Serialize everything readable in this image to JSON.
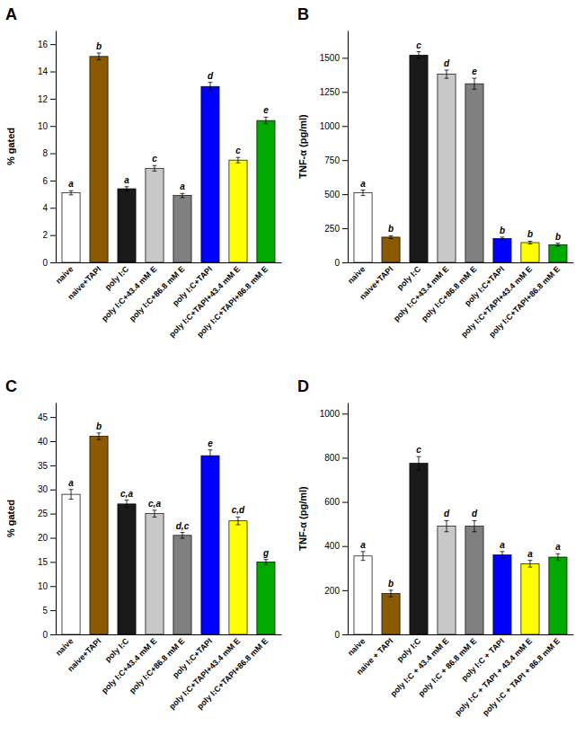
{
  "chart_data": [
    {
      "type": "bar",
      "title": "A",
      "ylabel": "% gated",
      "categories": [
        "naive",
        "naive+TAPI",
        "poly I:C",
        "poly I:C+43.4 mM E",
        "poly I:C+86.8 mM E",
        "poly I:C+TAPI",
        "poly I:C+TAPI+43.4 mM E",
        "poly I:C+TAPI+86.8 mM E"
      ],
      "values": [
        5.1,
        15.1,
        5.4,
        6.9,
        4.9,
        12.9,
        7.5,
        10.4
      ],
      "errors": [
        0.15,
        0.25,
        0.15,
        0.2,
        0.15,
        0.3,
        0.2,
        0.25
      ],
      "annotations": [
        "a",
        "b",
        "a",
        "c",
        "a",
        "d",
        "c",
        "e"
      ],
      "colors": [
        "#ffffff",
        "#8B5A00",
        "#1a1a1a",
        "#c8c8c8",
        "#808080",
        "#0000ff",
        "#ffff00",
        "#00aa00"
      ],
      "ylim": [
        0,
        17
      ],
      "yticks": [
        0,
        2,
        4,
        6,
        8,
        10,
        12,
        14,
        16
      ],
      "grid": false
    },
    {
      "type": "bar",
      "title": "B",
      "ylabel": "TNF-α (pg/ml)",
      "categories": [
        "naive",
        "naive+TAPI",
        "poly I:C",
        "poly I:C+43.4 mM E",
        "poly I:C+86.8 mM E",
        "poly I:C+TAPI",
        "poly I:C+TAPI+43.4 mM E",
        "poly I:C+TAPI+86.8 mM E"
      ],
      "values": [
        510,
        185,
        1520,
        1380,
        1310,
        175,
        145,
        130
      ],
      "errors": [
        20,
        10,
        25,
        30,
        40,
        10,
        10,
        10
      ],
      "annotations": [
        "a",
        "b",
        "c",
        "d",
        "e",
        "b",
        "b",
        "b"
      ],
      "colors": [
        "#ffffff",
        "#8B5A00",
        "#1a1a1a",
        "#c8c8c8",
        "#808080",
        "#0000ff",
        "#ffff00",
        "#00aa00"
      ],
      "ylim": [
        0,
        1700
      ],
      "yticks": [
        0,
        250,
        500,
        750,
        1000,
        1250,
        1500
      ],
      "grid": false
    },
    {
      "type": "bar",
      "title": "C",
      "ylabel": "% gated",
      "categories": [
        "naive",
        "naive+TAPI",
        "poly I:C",
        "poly I:C+43.4 mM E",
        "poly I:C+86.8 mM E",
        "poly I:C+TAPI",
        "poly I:C+TAPI+43.4 mM E",
        "poly I:C+TAPI+86.8 mM E"
      ],
      "values": [
        29.0,
        41.0,
        27.0,
        25.0,
        20.5,
        37.0,
        23.5,
        15.0
      ],
      "errors": [
        1.0,
        0.7,
        0.8,
        0.7,
        0.6,
        1.2,
        0.8,
        0.5
      ],
      "annotations": [
        "a",
        "b",
        "c,a",
        "c,a",
        "d,c",
        "e",
        "c,d",
        "g"
      ],
      "colors": [
        "#ffffff",
        "#8B5A00",
        "#1a1a1a",
        "#c8c8c8",
        "#808080",
        "#0000ff",
        "#ffff00",
        "#00aa00"
      ],
      "ylim": [
        0,
        48
      ],
      "yticks": [
        0,
        5,
        10,
        15,
        20,
        25,
        30,
        35,
        40,
        45
      ],
      "grid": false
    },
    {
      "type": "bar",
      "title": "D",
      "ylabel": "TNF-α (pg/ml)",
      "categories": [
        "naive",
        "naive + TAPI",
        "poly I:C",
        "poly I:C + 43.4 mM E",
        "poly I:C + 86.8 mM E",
        "poly I:C + TAPI",
        "poly I:C + TAPI + 43.4 mM E",
        "poly I:C + TAPI + 86.8 mM E"
      ],
      "values": [
        355,
        185,
        775,
        490,
        490,
        360,
        320,
        350
      ],
      "errors": [
        20,
        15,
        30,
        25,
        25,
        15,
        15,
        15
      ],
      "annotations": [
        "a",
        "b",
        "c",
        "d",
        "d",
        "a",
        "a",
        "a"
      ],
      "colors": [
        "#ffffff",
        "#8B5A00",
        "#1a1a1a",
        "#c8c8c8",
        "#808080",
        "#0000ff",
        "#ffff00",
        "#00aa00"
      ],
      "ylim": [
        0,
        1050
      ],
      "yticks": [
        0,
        200,
        400,
        600,
        800,
        1000
      ],
      "grid": false
    }
  ]
}
